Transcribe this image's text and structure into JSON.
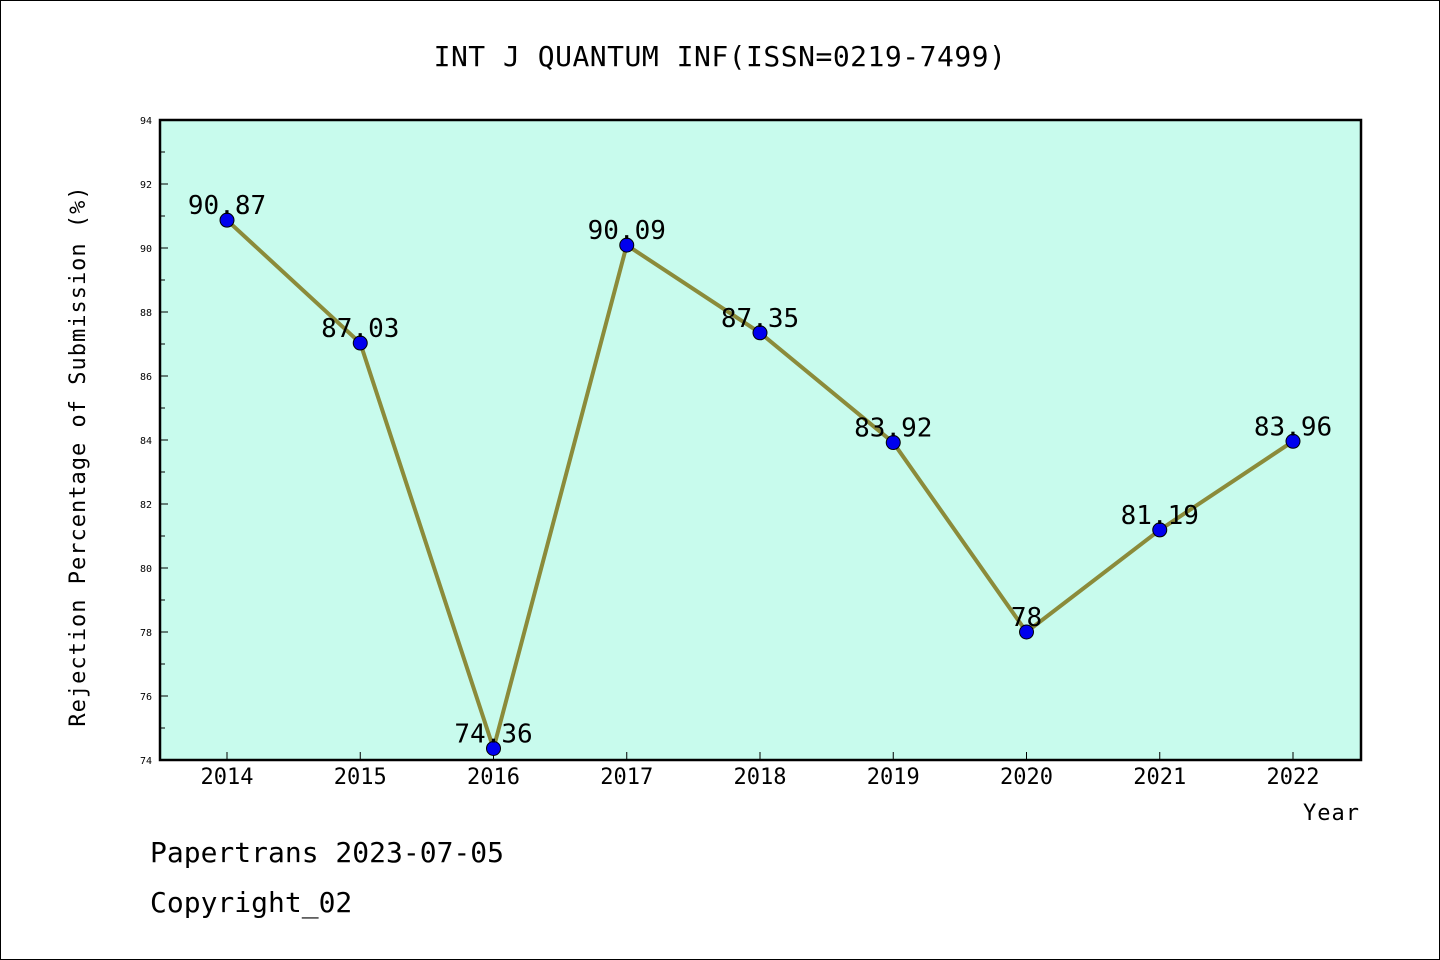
{
  "colors": {
    "plot_background": "#c8fbed",
    "line": "#8b8b3a",
    "marker": "#0000ee",
    "axis": "#000000"
  },
  "footer": {
    "line1": "Papertrans 2023-07-05",
    "line2": "Copyright_02"
  },
  "chart_data": {
    "type": "line",
    "title": "INT J QUANTUM INF(ISSN=0219-7499)",
    "xlabel": "Year",
    "ylabel": "Rejection Percentage of Submission (%)",
    "x": [
      "2014",
      "2015",
      "2016",
      "2017",
      "2018",
      "2019",
      "2020",
      "2021",
      "2022"
    ],
    "values": [
      90.87,
      87.03,
      74.36,
      90.09,
      87.35,
      83.92,
      78,
      81.19,
      83.96
    ],
    "data_labels": [
      "90.87",
      "87.03",
      "74.36",
      "90.09",
      "87.35",
      "83.92",
      "78",
      "81.19",
      "83.96"
    ],
    "ylim": [
      74,
      94
    ],
    "yticks": [
      "74",
      "76",
      "78",
      "80",
      "82",
      "84",
      "86",
      "88",
      "90",
      "92",
      "94"
    ],
    "grid": false,
    "legend": "none"
  }
}
